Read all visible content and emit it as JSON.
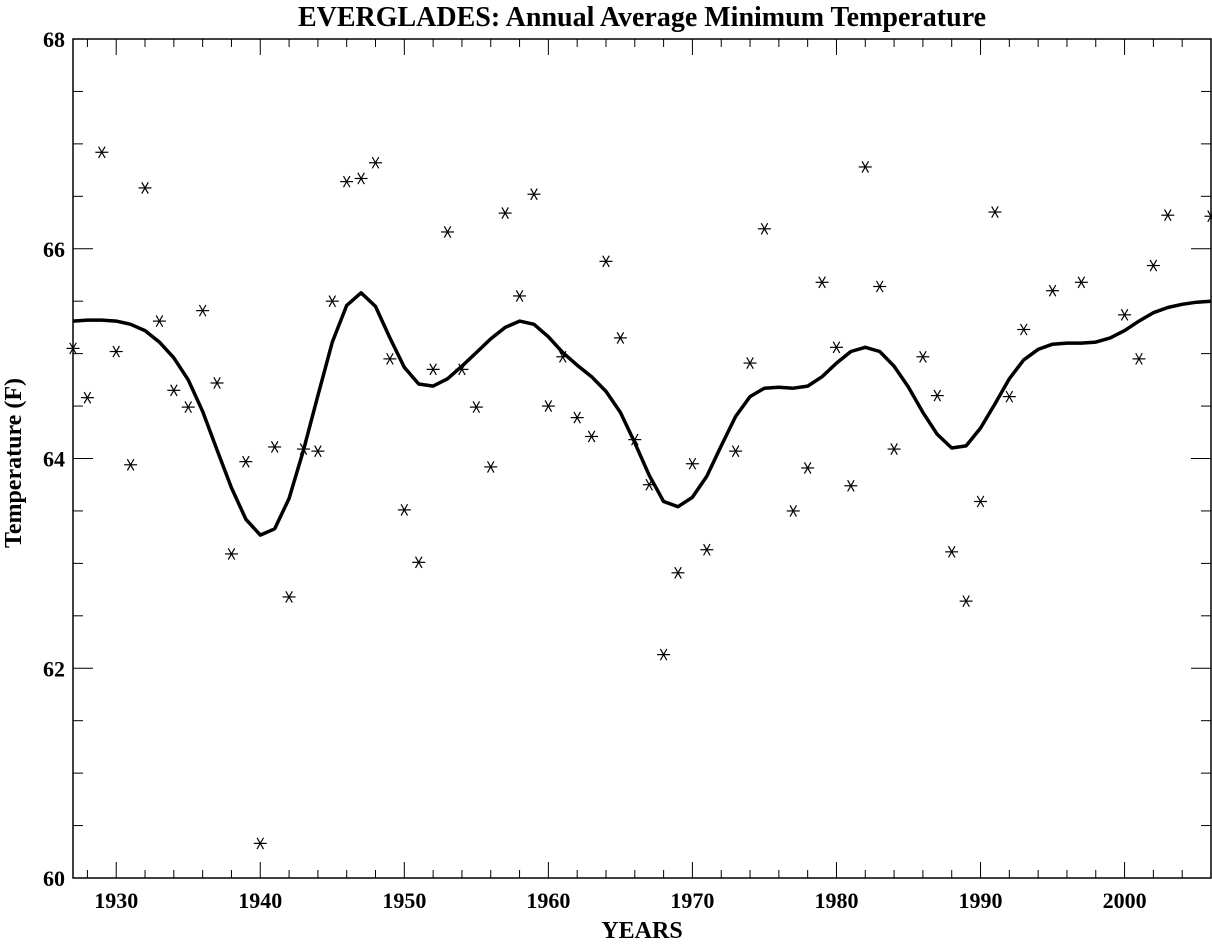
{
  "chart_data": {
    "type": "scatter",
    "title": "EVERGLADES: Annual Average Minimum Temperature",
    "xlabel": "YEARS",
    "ylabel": "Temperature (F)",
    "xlim": [
      1927,
      2006
    ],
    "ylim": [
      60,
      68
    ],
    "x_ticks": [
      1930,
      1940,
      1950,
      1960,
      1970,
      1980,
      1990,
      2000
    ],
    "y_ticks": [
      60,
      62,
      64,
      66,
      68
    ],
    "grid": false,
    "series": [
      {
        "marker": "asterisk",
        "x": [
          1927,
          1928,
          1929,
          1930,
          1931,
          1932,
          1933,
          1934,
          1935,
          1936,
          1937,
          1938,
          1939,
          1940,
          1941,
          1942,
          1943,
          1944,
          1945,
          1946,
          1947,
          1948,
          1949,
          1950,
          1951,
          1952,
          1953,
          1954,
          1955,
          1956,
          1957,
          1958,
          1959,
          1960,
          1961,
          1962,
          1963,
          1964,
          1965,
          1966,
          1967,
          1968,
          1969,
          1970,
          1971,
          1973,
          1974,
          1975,
          1977,
          1978,
          1979,
          1980,
          1981,
          1982,
          1983,
          1984,
          1986,
          1987,
          1988,
          1989,
          1990,
          1991,
          1992,
          1993,
          1995,
          1997,
          2000,
          2001,
          2002,
          2003,
          2006
        ],
        "y": [
          65.05,
          64.58,
          66.92,
          65.02,
          63.94,
          66.58,
          65.31,
          64.65,
          64.49,
          65.41,
          64.72,
          63.09,
          63.97,
          60.33,
          64.11,
          62.68,
          64.09,
          64.07,
          65.5,
          66.64,
          66.67,
          66.82,
          64.95,
          63.51,
          63.01,
          64.85,
          66.16,
          64.85,
          64.49,
          63.92,
          66.34,
          65.55,
          66.52,
          64.5,
          64.97,
          64.39,
          64.21,
          65.88,
          65.15,
          64.18,
          63.75,
          62.13,
          62.91,
          63.95,
          63.13,
          64.07,
          64.91,
          66.19,
          63.5,
          63.91,
          65.68,
          65.06,
          63.74,
          66.78,
          65.64,
          64.09,
          64.97,
          64.6,
          63.11,
          62.64,
          63.59,
          66.35,
          64.59,
          65.23,
          65.6,
          65.68,
          65.37,
          64.95,
          65.84,
          66.32,
          66.31
        ]
      },
      {
        "line": "smoothed",
        "x": [
          1927,
          1928,
          1929,
          1930,
          1931,
          1932,
          1933,
          1934,
          1935,
          1936,
          1937,
          1938,
          1939,
          1940,
          1941,
          1942,
          1943,
          1944,
          1945,
          1946,
          1947,
          1948,
          1949,
          1950,
          1951,
          1952,
          1953,
          1954,
          1955,
          1956,
          1957,
          1958,
          1959,
          1960,
          1961,
          1962,
          1963,
          1964,
          1965,
          1966,
          1967,
          1968,
          1969,
          1970,
          1971,
          1972,
          1973,
          1974,
          1975,
          1976,
          1977,
          1978,
          1979,
          1980,
          1981,
          1982,
          1983,
          1984,
          1985,
          1986,
          1987,
          1988,
          1989,
          1990,
          1991,
          1992,
          1993,
          1994,
          1995,
          1996,
          1997,
          1998,
          1999,
          2000,
          2001,
          2002,
          2003,
          2004,
          2005,
          2006
        ],
        "y": [
          65.31,
          65.32,
          65.32,
          65.31,
          65.28,
          65.22,
          65.11,
          64.96,
          64.75,
          64.45,
          64.08,
          63.72,
          63.42,
          63.27,
          63.33,
          63.62,
          64.08,
          64.6,
          65.11,
          65.46,
          65.58,
          65.45,
          65.15,
          64.87,
          64.71,
          64.69,
          64.76,
          64.88,
          65.01,
          65.14,
          65.25,
          65.31,
          65.28,
          65.16,
          65.01,
          64.89,
          64.78,
          64.64,
          64.44,
          64.15,
          63.84,
          63.59,
          63.54,
          63.63,
          63.83,
          64.12,
          64.4,
          64.59,
          64.67,
          64.68,
          64.67,
          64.69,
          64.78,
          64.91,
          65.02,
          65.06,
          65.02,
          64.88,
          64.68,
          64.44,
          64.23,
          64.1,
          64.12,
          64.29,
          64.52,
          64.76,
          64.94,
          65.04,
          65.09,
          65.1,
          65.1,
          65.11,
          65.15,
          65.22,
          65.31,
          65.39,
          65.44,
          65.47,
          65.49,
          65.5
        ]
      }
    ]
  }
}
